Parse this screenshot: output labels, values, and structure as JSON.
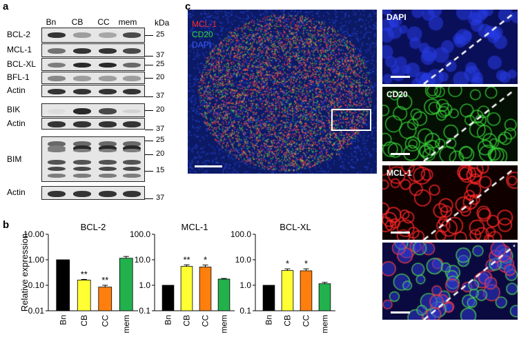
{
  "panels": {
    "a": "a",
    "b": "b",
    "c": "c"
  },
  "western": {
    "lanes": [
      "Bn",
      "CB",
      "CC",
      "mem"
    ],
    "kda_label": "kDa",
    "rows": [
      {
        "label": "BCL-2",
        "mw": "25"
      },
      {
        "label": "MCL-1",
        "mw": "37"
      },
      {
        "label": "BCL-XL",
        "mw": "25"
      },
      {
        "label": "BFL-1",
        "mw": "20"
      },
      {
        "label": "Actin",
        "mw": "37"
      },
      {
        "label": "BIK",
        "mw": "20"
      },
      {
        "label": "Actin",
        "mw": "37"
      },
      {
        "label": "BIM",
        "mw": [
          "25",
          "20",
          "15"
        ]
      },
      {
        "label": "Actin",
        "mw": "37"
      }
    ]
  },
  "bar_colors": {
    "Bn": "#000000",
    "CB": "#ffff33",
    "CC": "#ff7f0e",
    "mem": "#22b14c"
  },
  "chart_data": [
    {
      "type": "bar",
      "title": "BCL-2",
      "ylabel": "Relative expression",
      "categories": [
        "Bn",
        "CB",
        "CC",
        "mem"
      ],
      "values": [
        1.0,
        0.16,
        0.085,
        1.15
      ],
      "errors": [
        0,
        0.01,
        0.015,
        0.2
      ],
      "significance": [
        "",
        "**",
        "**",
        ""
      ],
      "yscale": "log",
      "ylim": [
        0.01,
        10
      ],
      "yticks": [
        "0.01",
        "0.10",
        "1.00",
        "10.00"
      ]
    },
    {
      "type": "bar",
      "title": "MCL-1",
      "categories": [
        "Bn",
        "CB",
        "CC",
        "mem"
      ],
      "values": [
        1.0,
        5.5,
        5.2,
        1.75
      ],
      "errors": [
        0,
        0.8,
        1.0,
        0.1
      ],
      "significance": [
        "",
        "**",
        "*",
        ""
      ],
      "yscale": "log",
      "ylim": [
        0.1,
        100
      ],
      "yticks": [
        "0.1",
        "1.0",
        "10.0",
        "100.0"
      ]
    },
    {
      "type": "bar",
      "title": "BCL-XL",
      "categories": [
        "Bn",
        "CB",
        "CC",
        "mem"
      ],
      "values": [
        1.0,
        3.8,
        3.7,
        1.15
      ],
      "errors": [
        0,
        0.6,
        0.7,
        0.15
      ],
      "significance": [
        "",
        "*",
        "*",
        ""
      ],
      "yscale": "log",
      "ylim": [
        0.1,
        100
      ],
      "yticks": [
        "0.1",
        "1.0",
        "10.0",
        "100.0"
      ]
    }
  ],
  "microscopy": {
    "main_legend": [
      {
        "label": "MCL-1",
        "color": "#ff2a2a"
      },
      {
        "label": "CD20",
        "color": "#33dd33"
      },
      {
        "label": "DAPI",
        "color": "#3b5bff"
      }
    ],
    "insets": [
      "DAPI",
      "CD20",
      "MCL-1",
      ""
    ]
  }
}
